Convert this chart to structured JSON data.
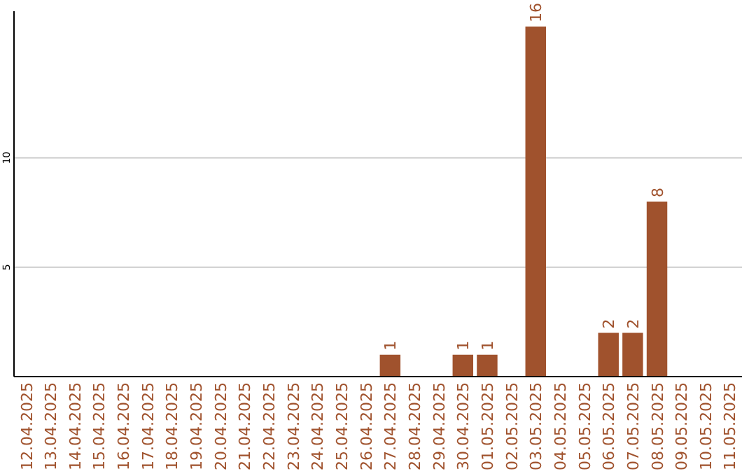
{
  "chart_data": {
    "type": "bar",
    "categories": [
      "12.04.2025",
      "13.04.2025",
      "14.04.2025",
      "15.04.2025",
      "16.04.2025",
      "17.04.2025",
      "18.04.2025",
      "19.04.2025",
      "20.04.2025",
      "21.04.2025",
      "22.04.2025",
      "23.04.2025",
      "24.04.2025",
      "25.04.2025",
      "26.04.2025",
      "27.04.2025",
      "28.04.2025",
      "29.04.2025",
      "30.04.2025",
      "01.05.2025",
      "02.05.2025",
      "03.05.2025",
      "04.05.2025",
      "05.05.2025",
      "06.05.2025",
      "07.05.2025",
      "08.05.2025",
      "09.05.2025",
      "10.05.2025",
      "11.05.2025"
    ],
    "values": [
      0,
      0,
      0,
      0,
      0,
      0,
      0,
      0,
      0,
      0,
      0,
      0,
      0,
      0,
      0,
      1,
      0,
      0,
      1,
      1,
      0,
      16,
      0,
      0,
      2,
      2,
      8,
      0,
      0,
      0
    ],
    "value_labels": [
      null,
      null,
      null,
      null,
      null,
      null,
      null,
      null,
      null,
      null,
      null,
      null,
      null,
      null,
      null,
      "1",
      null,
      null,
      "1",
      "1",
      null,
      "16",
      null,
      null,
      "2",
      "2",
      "8",
      null,
      null,
      null
    ],
    "color": "#a0522d",
    "ylim": [
      0,
      16.7
    ],
    "yticks": [
      5,
      10
    ],
    "grid": "y"
  }
}
